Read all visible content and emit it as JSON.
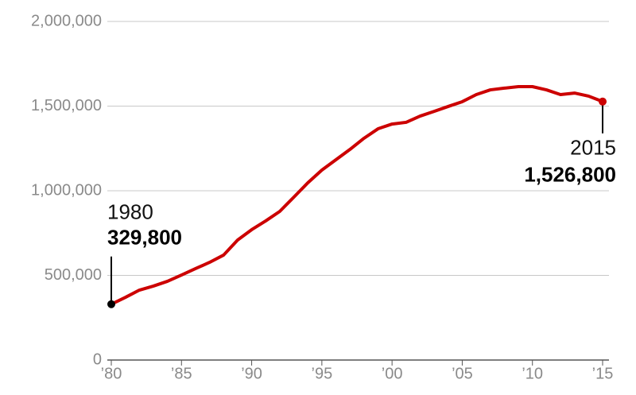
{
  "chart_data": {
    "type": "line",
    "x": [
      1980,
      1981,
      1982,
      1983,
      1984,
      1985,
      1986,
      1987,
      1988,
      1989,
      1990,
      1991,
      1992,
      1993,
      1994,
      1995,
      1996,
      1997,
      1998,
      1999,
      2000,
      2001,
      2002,
      2003,
      2004,
      2005,
      2006,
      2007,
      2008,
      2009,
      2010,
      2011,
      2012,
      2013,
      2014,
      2015
    ],
    "series": [
      {
        "color": "#cc0000",
        "values": [
          329800,
          370000,
          413000,
          437000,
          465000,
          502000,
          540000,
          577000,
          620000,
          709000,
          770000,
          822000,
          878000,
          962000,
          1047000,
          1122000,
          1183000,
          1244000,
          1310000,
          1366000,
          1394000,
          1404000,
          1441000,
          1469000,
          1498000,
          1526000,
          1568000,
          1596000,
          1606000,
          1615000,
          1615000,
          1596000,
          1568000,
          1577000,
          1559000,
          1526800
        ],
        "value_labels": [
          "329,800",
          null,
          null,
          null,
          null,
          null,
          null,
          null,
          null,
          null,
          null,
          null,
          null,
          null,
          null,
          null,
          null,
          null,
          null,
          null,
          null,
          null,
          null,
          null,
          null,
          null,
          null,
          null,
          null,
          null,
          null,
          null,
          null,
          null,
          null,
          "1,526,800"
        ]
      }
    ],
    "xlim": [
      1980,
      2015
    ],
    "xticks": [
      {
        "value": 1980,
        "label": "’80"
      },
      {
        "value": 1985,
        "label": "’85"
      },
      {
        "value": 1990,
        "label": "’90"
      },
      {
        "value": 1995,
        "label": "’95"
      },
      {
        "value": 2000,
        "label": "’00"
      },
      {
        "value": 2005,
        "label": "’05"
      },
      {
        "value": 2010,
        "label": "’10"
      },
      {
        "value": 2015,
        "label": "’15"
      }
    ],
    "ylim": [
      0,
      2000000
    ],
    "yticks": [
      0,
      {
        "value": 500000,
        "label": "500,000"
      },
      {
        "value": 1000000,
        "label": "1,000,000"
      },
      {
        "value": 1500000,
        "label": "1,500,000"
      },
      {
        "value": 2000000,
        "label": "2,000,000"
      }
    ],
    "grid": true
  }
}
